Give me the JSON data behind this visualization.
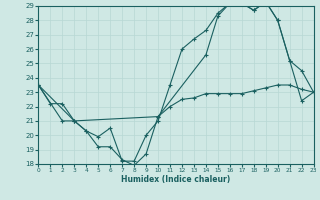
{
  "xlabel": "Humidex (Indice chaleur)",
  "xlim": [
    0,
    23
  ],
  "ylim": [
    18,
    29
  ],
  "yticks": [
    18,
    19,
    20,
    21,
    22,
    23,
    24,
    25,
    26,
    27,
    28,
    29
  ],
  "xticks": [
    0,
    1,
    2,
    3,
    4,
    5,
    6,
    7,
    8,
    9,
    10,
    11,
    12,
    13,
    14,
    15,
    16,
    17,
    18,
    19,
    20,
    21,
    22,
    23
  ],
  "bg_color": "#cfe8e4",
  "line_color": "#1a6060",
  "grid_color": "#b8d8d4",
  "line1_x": [
    0,
    1,
    2,
    3,
    4,
    5,
    6,
    7,
    8,
    9,
    10,
    11,
    12,
    13,
    14,
    15,
    16,
    17,
    18,
    19,
    20,
    21,
    22,
    23
  ],
  "line1_y": [
    23.5,
    22.2,
    22.2,
    21.0,
    20.3,
    19.2,
    19.2,
    18.3,
    17.9,
    18.7,
    21.3,
    22.0,
    22.5,
    22.6,
    22.9,
    22.9,
    22.9,
    22.9,
    23.1,
    23.3,
    23.5,
    23.5,
    23.2,
    23.0
  ],
  "line2_x": [
    0,
    2,
    3,
    4,
    5,
    6,
    7,
    8,
    9,
    10,
    11,
    12,
    13,
    14,
    15,
    16,
    17,
    18,
    19,
    20,
    21,
    22,
    23
  ],
  "line2_y": [
    23.5,
    21.0,
    21.0,
    20.3,
    19.9,
    20.5,
    18.2,
    18.2,
    20.0,
    21.0,
    23.5,
    26.0,
    26.7,
    27.3,
    28.5,
    29.2,
    29.2,
    28.7,
    29.3,
    28.0,
    25.2,
    24.5,
    23.0
  ],
  "line3_x": [
    0,
    3,
    10,
    14,
    15,
    16,
    17,
    18,
    19,
    20,
    21,
    22,
    23
  ],
  "line3_y": [
    23.5,
    21.0,
    21.3,
    25.6,
    28.3,
    29.2,
    29.2,
    28.7,
    29.3,
    28.0,
    25.2,
    22.4,
    23.0
  ]
}
